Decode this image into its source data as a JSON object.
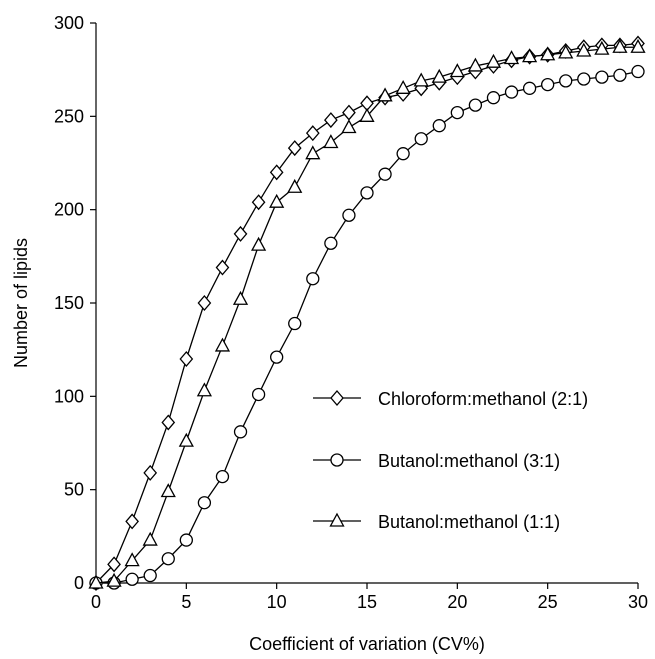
{
  "chart_data": {
    "type": "line",
    "xlabel": "Coefficient of variation (CV%)",
    "ylabel": "Number of lipids",
    "xlim": [
      0,
      30
    ],
    "ylim": [
      0,
      300
    ],
    "xticks": [
      0,
      5,
      10,
      15,
      20,
      25,
      30
    ],
    "yticks": [
      0,
      50,
      100,
      150,
      200,
      250,
      300
    ],
    "grid": false,
    "legend_position": "center-right",
    "x": [
      0,
      1,
      2,
      3,
      4,
      5,
      6,
      7,
      8,
      9,
      10,
      11,
      12,
      13,
      14,
      15,
      16,
      17,
      18,
      19,
      20,
      21,
      22,
      23,
      24,
      25,
      26,
      27,
      28,
      29,
      30
    ],
    "series": [
      {
        "name": "Chloroform:methanol (2:1)",
        "marker": "diamond",
        "values": [
          0,
          10,
          33,
          59,
          86,
          120,
          150,
          169,
          187,
          204,
          220,
          233,
          241,
          248,
          252,
          257,
          260,
          262,
          265,
          268,
          271,
          274,
          277,
          280,
          282,
          283,
          285,
          287,
          288,
          288,
          289
        ]
      },
      {
        "name": "Butanol:methanol (3:1)",
        "marker": "circle",
        "values": [
          0,
          0,
          2,
          4,
          13,
          23,
          43,
          57,
          81,
          101,
          121,
          139,
          163,
          182,
          197,
          209,
          219,
          230,
          238,
          245,
          252,
          256,
          260,
          263,
          265,
          267,
          269,
          270,
          271,
          272,
          274
        ]
      },
      {
        "name": "Butanol:methanol (1:1)",
        "marker": "triangle",
        "values": [
          0,
          1,
          12,
          23,
          49,
          76,
          103,
          127,
          152,
          181,
          204,
          212,
          230,
          236,
          244,
          250,
          261,
          265,
          269,
          271,
          274,
          277,
          279,
          281,
          282,
          283,
          284,
          285,
          286,
          287,
          287
        ]
      }
    ]
  }
}
